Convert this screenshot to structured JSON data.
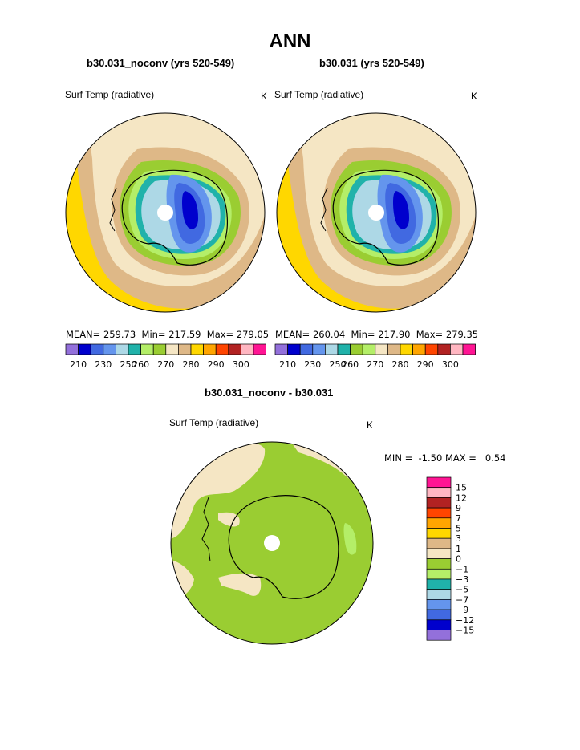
{
  "title": "ANN",
  "panels": [
    {
      "case": "b30.031_noconv (yrs 520-549)",
      "variable": "Surf Temp (radiative)",
      "units": "K",
      "stats": {
        "mean_label": "MEAN=",
        "mean": "259.73",
        "min_label": "Min=",
        "min": "217.59",
        "max_label": "Max=",
        "max": "279.05"
      }
    },
    {
      "case": "b30.031 (yrs 520-549)",
      "variable": "Surf Temp (radiative)",
      "units": "K",
      "stats": {
        "mean_label": "MEAN=",
        "mean": "260.04",
        "min_label": "Min=",
        "min": "217.90",
        "max_label": "Max=",
        "max": "279.35"
      }
    }
  ],
  "diff": {
    "title": "b30.031_noconv - b30.031",
    "variable": "Surf Temp (radiative)",
    "units": "K",
    "min_label": "MIN =",
    "min": "-1.50",
    "max_label": "MAX =",
    "max": "0.54"
  },
  "chart_data": [
    {
      "type": "heatmap",
      "projection": "south polar stereographic",
      "title": "b30.031_noconv (yrs 520-549)",
      "variable": "Surf Temp (radiative)",
      "units": "K",
      "mean": 259.73,
      "min": 217.59,
      "max": 279.05,
      "contour_levels": [
        210,
        215,
        220,
        225,
        230,
        235,
        240,
        245,
        250,
        255,
        260,
        265,
        270,
        275,
        280,
        285,
        290,
        295,
        300
      ],
      "colorbar_labels": [
        "210",
        "230",
        "250",
        "260",
        "270",
        "280",
        "290",
        "300"
      ],
      "colors": [
        "#9370DB",
        "#0000CD",
        "#4169E1",
        "#6495ED",
        "#ADD8E6",
        "#20B2AA",
        "#B4EE68",
        "#9ACD32",
        "#F5E6C4",
        "#DEB887",
        "#FFD700",
        "#FFA500",
        "#FF4500",
        "#B22222",
        "#FFB6C1",
        "#FF1493"
      ]
    },
    {
      "type": "heatmap",
      "projection": "south polar stereographic",
      "title": "b30.031 (yrs 520-549)",
      "variable": "Surf Temp (radiative)",
      "units": "K",
      "mean": 260.04,
      "min": 217.9,
      "max": 279.35,
      "contour_levels": [
        210,
        215,
        220,
        225,
        230,
        235,
        240,
        245,
        250,
        255,
        260,
        265,
        270,
        275,
        280,
        285,
        290,
        295,
        300
      ],
      "colorbar_labels": [
        "210",
        "230",
        "250",
        "260",
        "270",
        "280",
        "290",
        "300"
      ],
      "colors": [
        "#9370DB",
        "#0000CD",
        "#4169E1",
        "#6495ED",
        "#ADD8E6",
        "#20B2AA",
        "#9ACD32",
        "#B4EE68",
        "#F5E6C4",
        "#DEB887",
        "#FFD700",
        "#FFA500",
        "#FF4500",
        "#B22222",
        "#FFB6C1",
        "#FF1493"
      ]
    },
    {
      "type": "heatmap",
      "projection": "south polar stereographic",
      "title": "b30.031_noconv - b30.031",
      "variable": "Surf Temp (radiative)",
      "units": "K",
      "min": -1.5,
      "max": 0.54,
      "contour_levels": [
        -15,
        -12,
        -9,
        -7,
        -5,
        -3,
        -1,
        0,
        1,
        3,
        5,
        7,
        9,
        12,
        15
      ],
      "colorbar_labels": [
        "15",
        "12",
        "9",
        "7",
        "5",
        "3",
        "1",
        "0",
        "−1",
        "−3",
        "−5",
        "−7",
        "−9",
        "−12",
        "−15"
      ],
      "colors": [
        "#FF1493",
        "#FFB6C1",
        "#B22222",
        "#FF4500",
        "#FFA500",
        "#FFD700",
        "#DEB887",
        "#F5E6C4",
        "#9ACD32",
        "#B4EE68",
        "#20B2AA",
        "#ADD8E6",
        "#6495ED",
        "#4169E1",
        "#0000CD",
        "#9370DB"
      ]
    }
  ]
}
